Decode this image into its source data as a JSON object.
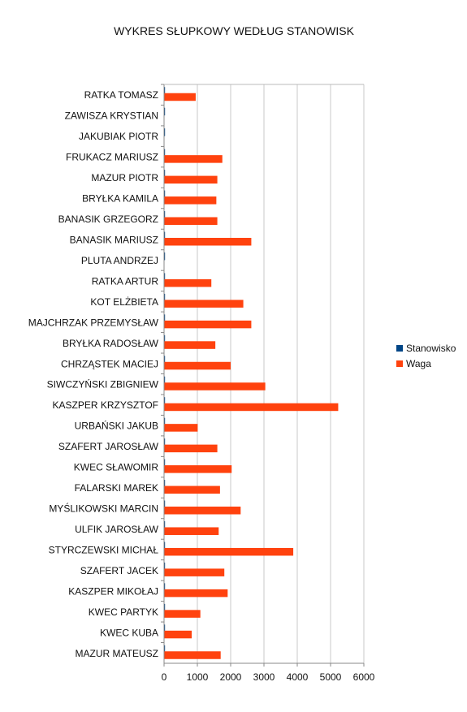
{
  "chart_data": {
    "type": "bar",
    "orientation": "horizontal",
    "title": "WYKRES SŁUPKOWY WEDŁUG STANOWISK",
    "xlabel": "",
    "ylabel": "",
    "xlim": [
      0,
      6000
    ],
    "xticks": [
      "0",
      "1000",
      "2000",
      "3000",
      "4000",
      "5000",
      "6000"
    ],
    "grid": "vertical",
    "legend_position": "right",
    "categories": [
      "RATKA TOMASZ",
      "ZAWISZA KRYSTIAN",
      "JAKUBIAK PIOTR",
      "FRUKACZ MARIUSZ",
      "MAZUR PIOTR",
      "BRYŁKA KAMILA",
      "BANASIK GRZEGORZ",
      "BANASIK MARIUSZ",
      "PLUTA ANDRZEJ",
      "RATKA ARTUR",
      "KOT ELŻBIETA",
      "MAJCHRZAK PRZEMYSŁAW",
      "BRYŁKA RADOSŁAW",
      "CHRZĄSTEK MACIEJ",
      "SIWCZYŃSKI ZBIGNIEW",
      "KASZPER KRZYSZTOF",
      "URBAŃSKI JAKUB",
      "SZAFERT JAROSŁAW",
      "KWEC SŁAWOMIR",
      "FALARSKI MAREK",
      "MYŚLIKOWSKI MARCIN",
      "ULFIK JAROSŁAW",
      "STYRCZEWSKI MICHAŁ",
      "SZAFERT JACEK",
      "KASZPER MIKOŁAJ",
      "KWEC PARTYK",
      "KWEC KUBA",
      "MAZUR MATEUSZ"
    ],
    "series": [
      {
        "name": "Stanowisko",
        "color": "#004586",
        "values": [
          1,
          1,
          1,
          1,
          1,
          1,
          1,
          1,
          1,
          1,
          1,
          1,
          1,
          1,
          1,
          1,
          1,
          1,
          1,
          1,
          1,
          1,
          1,
          1,
          1,
          1,
          1,
          1
        ]
      },
      {
        "name": "Waga",
        "color": "#ff420e",
        "values": [
          950,
          0,
          0,
          1750,
          1600,
          1570,
          1600,
          2620,
          0,
          1420,
          2380,
          2620,
          1540,
          2000,
          3040,
          5230,
          1010,
          1600,
          2030,
          1680,
          2300,
          1640,
          3880,
          1810,
          1910,
          1090,
          830,
          1700
        ]
      }
    ]
  }
}
